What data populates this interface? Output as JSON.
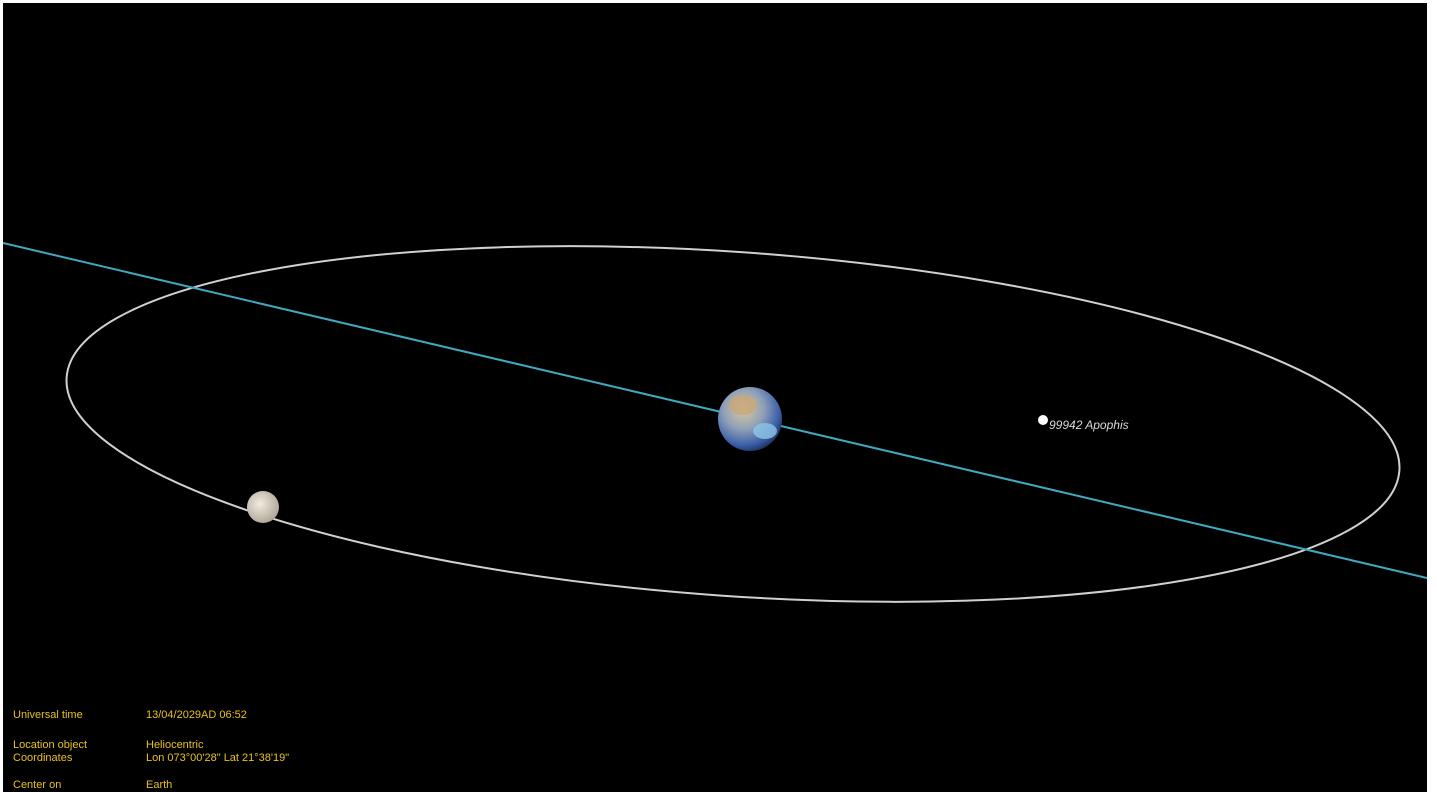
{
  "scene": {
    "object_label": "99942 Apophis"
  },
  "info_panel": {
    "rows": [
      {
        "label": "Universal time",
        "value": "13/04/2029AD 06:52"
      },
      {
        "label": "Location object",
        "value": "Heliocentric"
      },
      {
        "label": "Coordinates",
        "value": "Lon 073°00'28\" Lat 21°38'19\""
      },
      {
        "label": "Center on",
        "value": "Earth"
      }
    ]
  }
}
